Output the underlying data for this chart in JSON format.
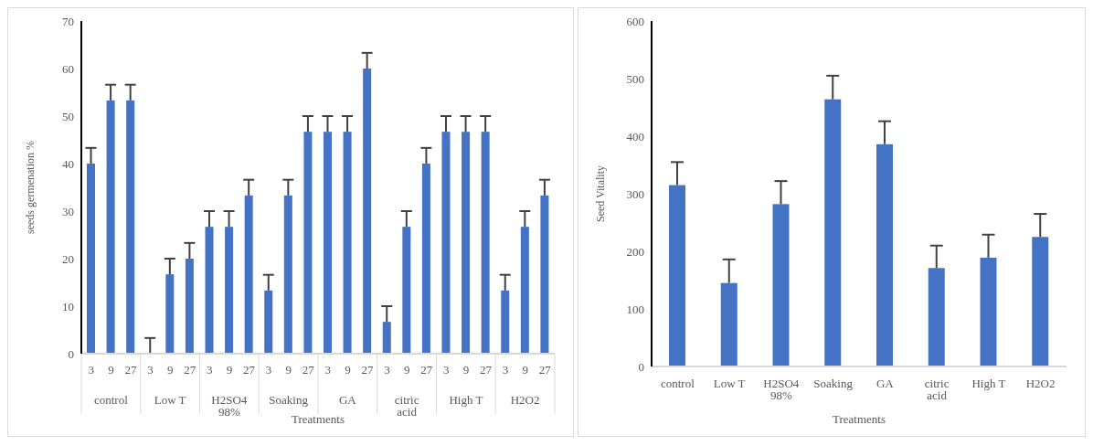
{
  "chart_data": [
    {
      "type": "bar",
      "xlabel": "Treatments",
      "ylabel": "seeds germenation %",
      "color": "#4472c4",
      "categories": [
        "3",
        "9",
        "27",
        "3",
        "9",
        "27",
        "3",
        "9",
        "27",
        "3",
        "9",
        "27",
        "3",
        "9",
        "27",
        "3",
        "9",
        "27",
        "3",
        "9",
        "27",
        "3",
        "9",
        "27"
      ],
      "annotations": [
        "control",
        "Low T",
        "H2SO4 98%",
        "Soaking",
        "GA",
        "citric acid",
        "High T",
        "H2O2"
      ],
      "values": [
        40,
        53.3,
        53.3,
        0,
        16.7,
        20,
        26.7,
        26.7,
        33.3,
        13.3,
        33.3,
        46.7,
        46.7,
        46.7,
        60,
        6.7,
        26.7,
        40,
        46.7,
        46.7,
        46.7,
        13.3,
        26.7,
        33.3
      ],
      "errors": [
        [
          40,
          43.3
        ],
        [
          53.3,
          56.6
        ],
        [
          53.3,
          56.6
        ],
        [
          0,
          3.3
        ],
        [
          16.7,
          20
        ],
        [
          20,
          23.3
        ],
        [
          26.7,
          30
        ],
        [
          26.7,
          30
        ],
        [
          33.3,
          36.6
        ],
        [
          13.3,
          16.6
        ],
        [
          33.3,
          36.6
        ],
        [
          46.7,
          50
        ],
        [
          46.7,
          50
        ],
        [
          46.7,
          50
        ],
        [
          60,
          63.3
        ],
        [
          6.7,
          10
        ],
        [
          26.7,
          30
        ],
        [
          40,
          43.3
        ],
        [
          46.7,
          50
        ],
        [
          46.7,
          50
        ],
        [
          46.7,
          50
        ],
        [
          13.3,
          16.6
        ],
        [
          26.7,
          30
        ],
        [
          33.3,
          36.6
        ]
      ],
      "ylim": [
        0,
        70
      ],
      "yticks": [
        0,
        10,
        20,
        30,
        40,
        50,
        60,
        70
      ],
      "grid": false,
      "legend": false
    },
    {
      "type": "bar",
      "xlabel": "Treatments",
      "ylabel": "Seed Vitality",
      "color": "#4472c4",
      "categories": [
        "control",
        "Low T",
        "H2SO4 98%",
        "Soaking",
        "GA",
        "citric acid",
        "High T",
        "H2O2"
      ],
      "values": [
        315,
        145,
        282,
        464,
        386,
        171,
        189,
        225
      ],
      "errors": [
        [
          315,
          355
        ],
        [
          145,
          186
        ],
        [
          282,
          322
        ],
        [
          464,
          505
        ],
        [
          386,
          426
        ],
        [
          171,
          210
        ],
        [
          189,
          229
        ],
        [
          225,
          265
        ]
      ],
      "ylim": [
        0,
        600
      ],
      "yticks": [
        0,
        100,
        200,
        300,
        400,
        500,
        600
      ],
      "grid": false,
      "legend": false
    }
  ]
}
